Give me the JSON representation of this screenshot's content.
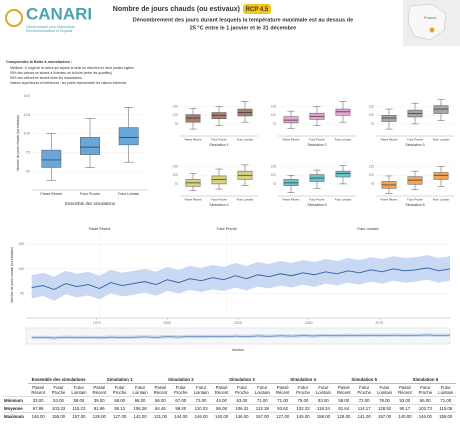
{
  "header": {
    "logo": "CANARI",
    "logo_sub": [
      "Climat Adapté pour l'Agriculture",
      "Recommandations et Impacts"
    ],
    "title": "Nombre de jours chauds (ou estivaux)",
    "scenario": "RCP 4.5",
    "subtitle": [
      "Dénombrement des jours durant lesquels la température maximale est au dessus de",
      "25 °C entre le 1 janvier et le 31 décembre"
    ],
    "map_label": "France"
  },
  "notes": {
    "title": "Comprendre la Boîte à moustaches :",
    "items": [
      "Médiane : Il s'agit de la valeur qui sépare la série de données en deux parties égales.",
      "50% des valeurs se situent à l'intérieur de la boîte (entre les quartiles).",
      "90% des valeurs se situent entre les moustaches.",
      "Valeurs supérieures et inférieures : les points représentent les valeurs extrêmes."
    ]
  },
  "chart_data": [
    {
      "type": "box",
      "title": "Ensemble des simulations",
      "ylabel": "Nombre de jours chauds (ou estivaux)",
      "color": "#6aa7d8",
      "categories": [
        "Passé Récent",
        "Futur Proche",
        "Futur Lointain"
      ],
      "boxes": [
        {
          "low": 38,
          "q1": 55,
          "median": 65,
          "q3": 78,
          "high": 100
        },
        {
          "low": 55,
          "q1": 72,
          "median": 82,
          "q3": 95,
          "high": 120
        },
        {
          "low": 62,
          "q1": 85,
          "median": 95,
          "q3": 108,
          "high": 135
        }
      ],
      "ylim": [
        25,
        150
      ],
      "yticks": [
        50,
        75,
        100,
        125,
        150
      ]
    },
    {
      "type": "box",
      "title": "Simulation 1",
      "color": "#a97e70",
      "categories": [
        "Passé Récent",
        "Futur Proche",
        "Futur Lointain"
      ],
      "boxes": [
        {
          "low": 60,
          "q1": 80,
          "median": 92,
          "q3": 102,
          "high": 120
        },
        {
          "low": 70,
          "q1": 90,
          "median": 100,
          "q3": 108,
          "high": 125
        },
        {
          "low": 80,
          "q1": 98,
          "median": 108,
          "q3": 118,
          "high": 140
        }
      ],
      "ylim": [
        40,
        150
      ],
      "yticks": [
        75,
        100,
        125
      ]
    },
    {
      "type": "box",
      "title": "Simulation 2",
      "color": "#e7a3d2",
      "categories": [
        "Passé Récent",
        "Futur Proche",
        "Futur Lointain"
      ],
      "boxes": [
        {
          "low": 62,
          "q1": 78,
          "median": 86,
          "q3": 96,
          "high": 112
        },
        {
          "low": 70,
          "q1": 88,
          "median": 97,
          "q3": 106,
          "high": 125
        },
        {
          "low": 80,
          "q1": 100,
          "median": 110,
          "q3": 118,
          "high": 140
        }
      ],
      "ylim": [
        40,
        150
      ],
      "yticks": [
        75,
        100,
        125
      ]
    },
    {
      "type": "box",
      "title": "Simulation 3",
      "color": "#a6a6a6",
      "categories": [
        "Passé Récent",
        "Futur Proche",
        "Futur Lointain"
      ],
      "boxes": [
        {
          "low": 60,
          "q1": 82,
          "median": 92,
          "q3": 100,
          "high": 118
        },
        {
          "low": 75,
          "q1": 95,
          "median": 105,
          "q3": 115,
          "high": 135
        },
        {
          "low": 85,
          "q1": 105,
          "median": 118,
          "q3": 128,
          "high": 145
        }
      ],
      "ylim": [
        40,
        150
      ],
      "yticks": [
        75,
        100,
        125
      ]
    },
    {
      "type": "box",
      "title": "Simulation 4",
      "color": "#d8d27f",
      "categories": [
        "Passé Récent",
        "Futur Proche",
        "Futur Lointain"
      ],
      "boxes": [
        {
          "low": 55,
          "q1": 68,
          "median": 78,
          "q3": 88,
          "high": 105
        },
        {
          "low": 60,
          "q1": 75,
          "median": 88,
          "q3": 98,
          "high": 118
        },
        {
          "low": 70,
          "q1": 88,
          "median": 100,
          "q3": 112,
          "high": 130
        }
      ],
      "ylim": [
        40,
        150
      ],
      "yticks": [
        75,
        100,
        125
      ]
    },
    {
      "type": "box",
      "title": "Simulation 5",
      "color": "#6cc5c9",
      "categories": [
        "Passé Récent",
        "Futur Proche",
        "Futur Lointain"
      ],
      "boxes": [
        {
          "low": 50,
          "q1": 70,
          "median": 78,
          "q3": 88,
          "high": 100
        },
        {
          "low": 62,
          "q1": 82,
          "median": 92,
          "q3": 102,
          "high": 115
        },
        {
          "low": 75,
          "q1": 95,
          "median": 105,
          "q3": 112,
          "high": 128
        }
      ],
      "ylim": [
        40,
        150
      ],
      "yticks": [
        75,
        100,
        125
      ]
    },
    {
      "type": "box",
      "title": "Simulation 6",
      "color": "#f3a45a",
      "categories": [
        "Passé Récent",
        "Futur Proche",
        "Futur Lointain"
      ],
      "boxes": [
        {
          "low": 48,
          "q1": 62,
          "median": 72,
          "q3": 82,
          "high": 98
        },
        {
          "low": 58,
          "q1": 74,
          "median": 86,
          "q3": 96,
          "high": 112
        },
        {
          "low": 68,
          "q1": 88,
          "median": 100,
          "q3": 108,
          "high": 125
        }
      ],
      "ylim": [
        40,
        150
      ],
      "yticks": [
        75,
        100,
        125
      ]
    },
    {
      "type": "line",
      "ylabel": "Nombre de jours chauds (ou estivaux)",
      "xlabel": "Années",
      "color": "#2f5f9e",
      "band_color": "#c9d9f3",
      "periods": [
        {
          "label": "Passé Récent",
          "start": 1976
        },
        {
          "label": "Futur Proche",
          "start": 2021
        },
        {
          "label": "Futur Lointain",
          "start": 2071
        }
      ],
      "x": [
        1952,
        1956,
        1960,
        1964,
        1968,
        1972,
        1976,
        1980,
        1984,
        1988,
        1992,
        1996,
        2000,
        2004,
        2008,
        2012,
        2016,
        2020,
        2024,
        2028,
        2032,
        2036,
        2040,
        2044,
        2048,
        2052,
        2056,
        2060,
        2064,
        2068,
        2072,
        2076,
        2080,
        2084,
        2088,
        2092,
        2096,
        2100
      ],
      "values": [
        62,
        66,
        58,
        70,
        64,
        68,
        60,
        72,
        66,
        70,
        74,
        68,
        78,
        72,
        80,
        76,
        82,
        78,
        86,
        80,
        88,
        84,
        90,
        86,
        92,
        88,
        94,
        90,
        96,
        92,
        98,
        94,
        100,
        96,
        98,
        102,
        96,
        100
      ],
      "band_low": [
        40,
        45,
        35,
        48,
        42,
        46,
        38,
        50,
        44,
        47,
        52,
        45,
        55,
        50,
        57,
        53,
        58,
        55,
        62,
        56,
        64,
        60,
        66,
        62,
        68,
        63,
        70,
        66,
        72,
        68,
        74,
        70,
        76,
        72,
        74,
        78,
        72,
        76
      ],
      "band_high": [
        87,
        92,
        84,
        96,
        90,
        94,
        86,
        98,
        92,
        96,
        100,
        94,
        104,
        98,
        106,
        102,
        108,
        104,
        112,
        106,
        114,
        110,
        116,
        112,
        118,
        114,
        120,
        116,
        122,
        118,
        124,
        120,
        126,
        122,
        124,
        128,
        122,
        126
      ],
      "xlim": [
        1950,
        2100
      ],
      "xticks": [
        1975,
        2000,
        2025,
        2050,
        2075
      ],
      "ylim": [
        0,
        175
      ],
      "yticks": [
        50,
        100,
        150
      ]
    }
  ],
  "table": {
    "groups": [
      "Ensemble des simulations",
      "Simulation 1",
      "Simulation 2",
      "Simulation 3",
      "Simulation 4",
      "Simulation 5",
      "Simulation 6"
    ],
    "columns": [
      "Passé Récent",
      "Futur Proche",
      "Futur Lointain"
    ],
    "rows": [
      {
        "label": "Minimum",
        "cells": [
          "33.00",
          "53.00",
          "58.00",
          "39.00",
          "68.00",
          "66.00",
          "56.00",
          "67.00",
          "73.00",
          "44.00",
          "63.00",
          "71.00",
          "71.00",
          "75.00",
          "83.00",
          "58.00",
          "72.00",
          "78.00",
          "53.00",
          "65.00",
          "71.00"
        ]
      },
      {
        "label": "Moyenne",
        "cells": [
          "67.95",
          "103.33",
          "115.23",
          "81.96",
          "95.13",
          "106.28",
          "84.45",
          "98.20",
          "110.33",
          "86.08",
          "106.31",
          "122.38",
          "93.62",
          "102.33",
          "118.34",
          "81.64",
          "114.17",
          "128.92",
          "90.17",
          "103.73",
          "115.05"
        ]
      },
      {
        "label": "Maximum",
        "cells": [
          "146.00",
          "155.00",
          "157.00",
          "125.00",
          "127.00",
          "142.00",
          "131.00",
          "144.00",
          "146.00",
          "140.00",
          "146.00",
          "167.00",
          "127.00",
          "145.00",
          "158.00",
          "128.00",
          "141.00",
          "157.00",
          "140.00",
          "146.00",
          "158.00"
        ]
      }
    ]
  }
}
